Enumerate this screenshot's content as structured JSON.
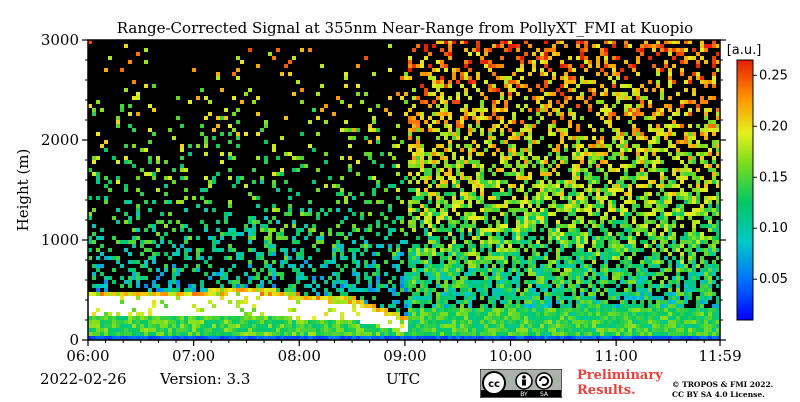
{
  "chart_data": {
    "type": "heatmap",
    "title": "Range-Corrected Signal at 355nm Near-Range from PollyXT_FMI at Kuopio",
    "xlabel": "UTC",
    "ylabel": "Height (m)",
    "x_ticks": [
      "06:00",
      "07:00",
      "08:00",
      "09:00",
      "10:00",
      "11:00",
      "11:59"
    ],
    "x_range_hours": [
      6.0,
      11.983
    ],
    "y_ticks": [
      0,
      1000,
      2000,
      3000
    ],
    "ylim": [
      0,
      3000
    ],
    "colorbar": {
      "label": "[a.u.]",
      "ticks": [
        0.05,
        0.1,
        0.15,
        0.2,
        0.25
      ],
      "tick_labels": [
        "0.05",
        "0.10",
        "0.15",
        "0.20",
        "0.25"
      ],
      "range": [
        0.01,
        0.265
      ],
      "colormap": "jet"
    },
    "features": {
      "saturated_boundary_layer_top_m": [
        {
          "time": "06:00",
          "height": 450
        },
        {
          "time": "07:00",
          "height": 450
        },
        {
          "time": "07:30",
          "height": 500
        },
        {
          "time": "08:00",
          "height": 420
        },
        {
          "time": "08:30",
          "height": 380
        },
        {
          "time": "09:00",
          "height": 200
        }
      ],
      "noise_regime_change": "09:00"
    }
  },
  "footer": {
    "date": "2022-02-26",
    "version": "Version: 3.3",
    "time_zone": "UTC",
    "preliminary_line1": "Preliminary",
    "preliminary_line2": "Results.",
    "copyright_line1": "© TROPOS & FMI 2022.",
    "copyright_line2": "CC BY SA 4.0 License.",
    "license_badge": {
      "left": "cc",
      "by": "BY",
      "sa": "SA"
    }
  },
  "colors": {
    "saturation": "#ffffff",
    "background": "#000000",
    "preliminary_text": "#e8423c"
  }
}
